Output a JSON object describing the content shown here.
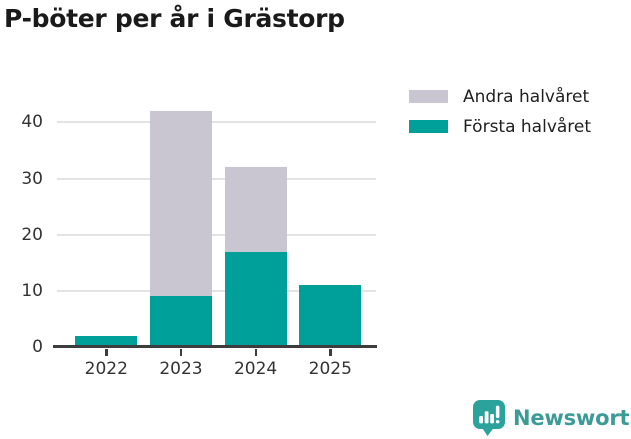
{
  "title": "P-böter per år i Grästorp",
  "legend": {
    "items": [
      {
        "label": "Andra halvåret",
        "color": "#c9c6d2"
      },
      {
        "label": "Första halvåret",
        "color": "#00a09a"
      }
    ]
  },
  "chart_data": {
    "type": "bar",
    "stacked": true,
    "title": "P-böter per år i Grästorp",
    "categories": [
      "2022",
      "2023",
      "2024",
      "2025"
    ],
    "series": [
      {
        "name": "Första halvåret",
        "color": "#00a09a",
        "values": [
          2,
          9,
          17,
          11
        ]
      },
      {
        "name": "Andra halvåret",
        "color": "#c9c6d2",
        "values": [
          0,
          33,
          15,
          0
        ]
      }
    ],
    "totals": [
      2,
      42,
      32,
      11
    ],
    "xlabel": "",
    "ylabel": "",
    "ylim": [
      0,
      44
    ],
    "yticks": [
      0,
      10,
      20,
      30,
      40
    ],
    "grid": true,
    "legend_position": "top-right"
  },
  "branding": {
    "logo_text": "Newsworthy",
    "logo_color": "#3d9b96",
    "icon_color": "#2ba39c",
    "icon_name": "newsworthy-chart-bubble-icon"
  },
  "colors": {
    "axis": "#3d3d3d",
    "grid": "#e3e3e5",
    "tick_label": "#333333",
    "title_text": "#1a1a1a",
    "background": "#ffffff"
  }
}
